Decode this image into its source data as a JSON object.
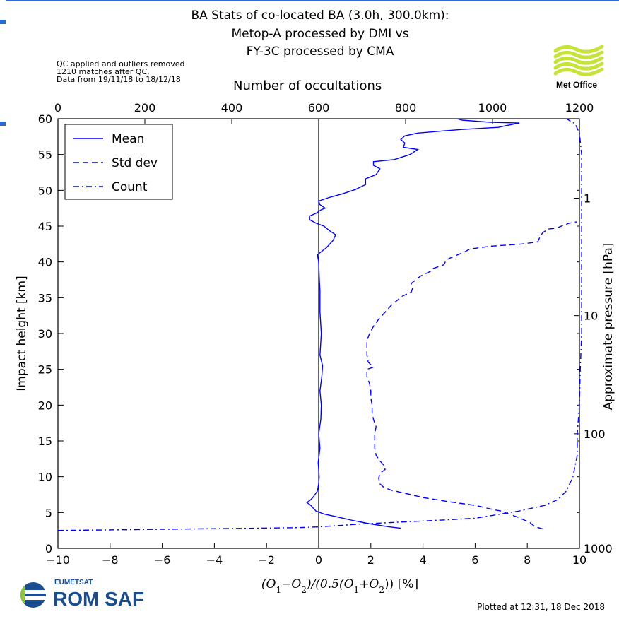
{
  "header": {
    "title_lines": [
      "BA Stats of co-located BA (3.0h, 300.0km):",
      "Metop-A processed by DMI vs",
      "FY-3C processed by CMA"
    ],
    "notes": [
      "QC applied and outliers removed",
      "1210 matches after QC.",
      "Data from 19/11/18 to 18/12/18"
    ]
  },
  "logos": {
    "metoffice_text": "Met Office",
    "metoffice_color": "#c6e33a",
    "eumetsat_text": "EUMETSAT",
    "romsaf_text": "ROM SAF",
    "romsaf_color": "#1a4d8f",
    "romsaf_accent": "#8cc63e"
  },
  "footer": {
    "plotted": "Plotted at 12:31, 18 Dec 2018"
  },
  "chart_data": {
    "type": "line",
    "xlabel": "$(O_1\\!-\\!O_2)/(0.5(O_1+O_2))$ [%]",
    "xlabel_display": [
      "(O",
      "1",
      "−O",
      "2",
      ")/(0.5(O",
      "1",
      "+O",
      "2",
      ")) [%]"
    ],
    "ylabel": "Impact height [km]",
    "top_xlabel": "Number of occultations",
    "right_ylabel": "Approximate pressure [hPa]",
    "xlim": [
      -10,
      10
    ],
    "ylim": [
      0,
      60
    ],
    "top_xlim": [
      0,
      1200
    ],
    "x_ticks": [
      "−10",
      "−8",
      "−6",
      "−4",
      "−2",
      "0",
      "2",
      "4",
      "6",
      "8",
      "10"
    ],
    "y_ticks": [
      "0",
      "5",
      "10",
      "15",
      "20",
      "25",
      "30",
      "35",
      "40",
      "45",
      "50",
      "55",
      "60"
    ],
    "top_ticks": [
      "0",
      "200",
      "400",
      "600",
      "800",
      "1000",
      "1200"
    ],
    "right_ticks": [
      {
        "label": "1",
        "height_km": 48.9
      },
      {
        "label": "10",
        "height_km": 32.5
      },
      {
        "label": "100",
        "height_km": 16.0
      },
      {
        "label": "1000",
        "height_km": 0
      }
    ],
    "grid": false,
    "legend_position": "top-left",
    "series": [
      {
        "name": "Mean",
        "style": "solid",
        "color": "#0000ff",
        "points": [
          [
            3.15,
            2.8
          ],
          [
            2.7,
            3.0
          ],
          [
            2.0,
            3.4
          ],
          [
            1.3,
            3.9
          ],
          [
            0.7,
            4.4
          ],
          [
            0.2,
            4.8
          ],
          [
            -0.1,
            5.2
          ],
          [
            -0.2,
            5.6
          ],
          [
            -0.3,
            6.0
          ],
          [
            -0.45,
            6.4
          ],
          [
            -0.3,
            6.8
          ],
          [
            -0.2,
            7.2
          ],
          [
            -0.05,
            8
          ],
          [
            0,
            9
          ],
          [
            0.02,
            10
          ],
          [
            -0.02,
            12
          ],
          [
            0.05,
            14
          ],
          [
            0,
            16
          ],
          [
            0.08,
            18
          ],
          [
            0.1,
            20
          ],
          [
            0.05,
            22
          ],
          [
            0.12,
            24
          ],
          [
            0.15,
            25.5
          ],
          [
            0.05,
            27
          ],
          [
            0.1,
            30
          ],
          [
            0.05,
            33
          ],
          [
            0.05,
            36
          ],
          [
            0.02,
            38
          ],
          [
            0,
            40
          ],
          [
            -0.05,
            41
          ],
          [
            0.3,
            42
          ],
          [
            0.55,
            43
          ],
          [
            0.65,
            43.8
          ],
          [
            0.4,
            44.4
          ],
          [
            0.2,
            45
          ],
          [
            -0.1,
            45.4
          ],
          [
            -0.35,
            45.9
          ],
          [
            -0.35,
            46.4
          ],
          [
            -0.1,
            46.8
          ],
          [
            0.1,
            47.3
          ],
          [
            0.25,
            47.5
          ],
          [
            0.05,
            48
          ],
          [
            0,
            48.5
          ],
          [
            0.4,
            49
          ],
          [
            0.9,
            49.5
          ],
          [
            1.4,
            50.1
          ],
          [
            1.8,
            50.8
          ],
          [
            1.8,
            51.6
          ],
          [
            2.2,
            52.2
          ],
          [
            2.35,
            53
          ],
          [
            2.1,
            53.5
          ],
          [
            2.1,
            54
          ],
          [
            2.9,
            54.3
          ],
          [
            3.5,
            55
          ],
          [
            3.8,
            55.7
          ],
          [
            3.25,
            56
          ],
          [
            3.3,
            56.6
          ],
          [
            3.15,
            57.1
          ],
          [
            3.3,
            57.6
          ],
          [
            3.8,
            58
          ],
          [
            4.8,
            58.3
          ],
          [
            5.5,
            58.5
          ],
          [
            6.4,
            58.7
          ],
          [
            6.9,
            58.8
          ],
          [
            7.15,
            59.0
          ],
          [
            7.7,
            59.4
          ],
          [
            6.6,
            59.5
          ],
          [
            5.5,
            59.8
          ],
          [
            5.3,
            60
          ]
        ]
      },
      {
        "name": "Std dev",
        "style": "dashed",
        "color": "#0000ff",
        "points": [
          [
            8.6,
            2.7
          ],
          [
            8.3,
            3.0
          ],
          [
            8.1,
            3.6
          ],
          [
            7.6,
            4.4
          ],
          [
            7.2,
            4.9
          ],
          [
            7.0,
            5.2
          ],
          [
            6.6,
            5.5
          ],
          [
            6.0,
            6.0
          ],
          [
            5.0,
            6.5
          ],
          [
            4.0,
            7.1
          ],
          [
            3.3,
            7.7
          ],
          [
            2.8,
            8.1
          ],
          [
            2.5,
            8.5
          ],
          [
            2.35,
            9.0
          ],
          [
            2.3,
            9.8
          ],
          [
            2.35,
            10.5
          ],
          [
            2.55,
            11
          ],
          [
            2.5,
            11.6
          ],
          [
            2.35,
            12.2
          ],
          [
            2.2,
            13
          ],
          [
            2.15,
            14
          ],
          [
            2.15,
            15
          ],
          [
            2.15,
            16
          ],
          [
            2.2,
            17
          ],
          [
            2.1,
            18
          ],
          [
            2.05,
            19
          ],
          [
            2.05,
            20
          ],
          [
            2.0,
            21
          ],
          [
            2.0,
            22
          ],
          [
            1.95,
            23
          ],
          [
            1.85,
            24
          ],
          [
            1.85,
            25
          ],
          [
            2.1,
            25.3
          ],
          [
            1.9,
            26
          ],
          [
            1.85,
            27
          ],
          [
            1.85,
            28
          ],
          [
            1.85,
            29
          ],
          [
            1.95,
            30
          ],
          [
            2.1,
            31
          ],
          [
            2.3,
            32
          ],
          [
            2.55,
            33
          ],
          [
            2.8,
            34
          ],
          [
            3.2,
            35.2
          ],
          [
            3.55,
            35.8
          ],
          [
            3.6,
            36.3
          ],
          [
            3.55,
            37
          ],
          [
            3.9,
            38
          ],
          [
            4.3,
            38.7
          ],
          [
            4.4,
            39.1
          ],
          [
            4.8,
            39.6
          ],
          [
            4.9,
            40.3
          ],
          [
            5.2,
            40.8
          ],
          [
            5.6,
            41.4
          ],
          [
            5.8,
            41.8
          ],
          [
            6.6,
            42.2
          ],
          [
            7.8,
            42.5
          ],
          [
            8.4,
            42.8
          ],
          [
            8.5,
            43.6
          ],
          [
            8.6,
            44.1
          ],
          [
            8.8,
            44.6
          ],
          [
            9.1,
            44.7
          ],
          [
            9.6,
            45.4
          ],
          [
            9.9,
            45.6
          ]
        ]
      },
      {
        "name": "Count",
        "style": "dashdot",
        "color": "#0000ff",
        "points": [
          [
            0,
            2.5
          ],
          [
            150,
            2.6
          ],
          [
            300,
            2.7
          ],
          [
            450,
            2.8
          ],
          [
            560,
            2.9
          ],
          [
            600,
            3.0
          ],
          [
            700,
            3.4
          ],
          [
            800,
            3.7
          ],
          [
            900,
            4.0
          ],
          [
            960,
            4.2
          ],
          [
            1000,
            4.6
          ],
          [
            1060,
            5.2
          ],
          [
            1120,
            6.0
          ],
          [
            1150,
            6.8
          ],
          [
            1170,
            8.0
          ],
          [
            1185,
            10
          ],
          [
            1195,
            13
          ],
          [
            1195,
            16
          ],
          [
            1200,
            20
          ],
          [
            1202,
            25
          ],
          [
            1205,
            30
          ],
          [
            1205,
            35
          ],
          [
            1205,
            40
          ],
          [
            1205,
            45
          ],
          [
            1205,
            50
          ],
          [
            1205,
            55
          ],
          [
            1200,
            58
          ],
          [
            1190,
            59.3
          ],
          [
            1170,
            60
          ]
        ]
      }
    ]
  }
}
